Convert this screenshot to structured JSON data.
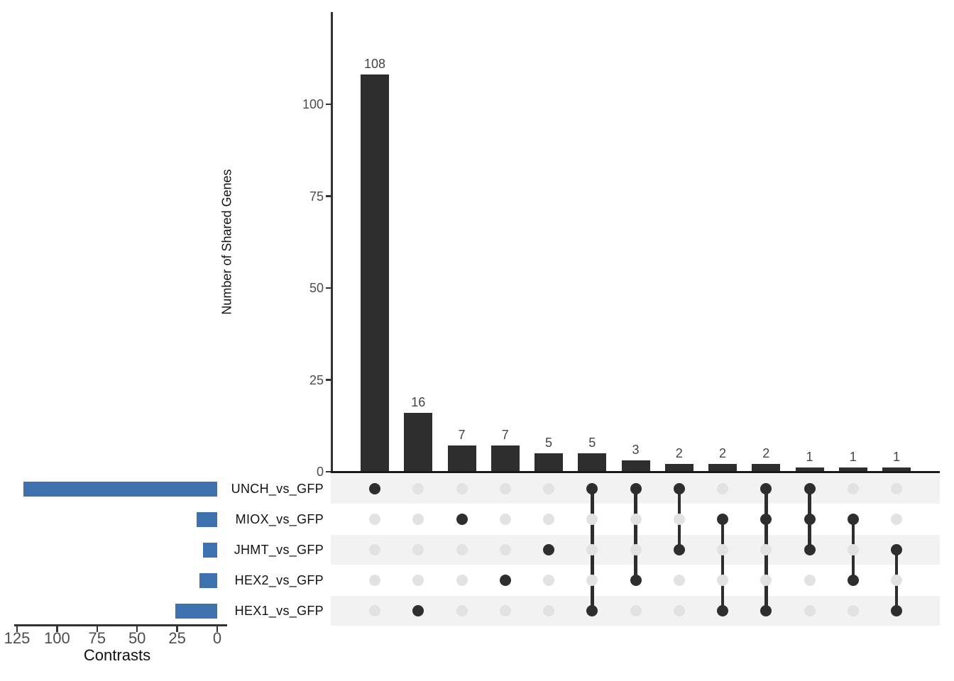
{
  "chart_data": {
    "type": "upset",
    "ylabel": "Number of Shared Genes",
    "set_size_label": "Contrasts",
    "grid": false,
    "sets": [
      {
        "name": "UNCH_vs_GFP",
        "size": 121
      },
      {
        "name": "MIOX_vs_GFP",
        "size": 13
      },
      {
        "name": "JHMT_vs_GFP",
        "size": 9
      },
      {
        "name": "HEX2_vs_GFP",
        "size": 11
      },
      {
        "name": "HEX1_vs_GFP",
        "size": 26
      }
    ],
    "intersections": [
      {
        "sets": [
          "UNCH_vs_GFP"
        ],
        "value": 108
      },
      {
        "sets": [
          "HEX1_vs_GFP"
        ],
        "value": 16
      },
      {
        "sets": [
          "MIOX_vs_GFP"
        ],
        "value": 7
      },
      {
        "sets": [
          "HEX2_vs_GFP"
        ],
        "value": 7
      },
      {
        "sets": [
          "JHMT_vs_GFP"
        ],
        "value": 5
      },
      {
        "sets": [
          "UNCH_vs_GFP",
          "HEX1_vs_GFP"
        ],
        "value": 5
      },
      {
        "sets": [
          "UNCH_vs_GFP",
          "HEX2_vs_GFP"
        ],
        "value": 3
      },
      {
        "sets": [
          "UNCH_vs_GFP",
          "JHMT_vs_GFP"
        ],
        "value": 2
      },
      {
        "sets": [
          "MIOX_vs_GFP",
          "HEX1_vs_GFP"
        ],
        "value": 2
      },
      {
        "sets": [
          "UNCH_vs_GFP",
          "MIOX_vs_GFP",
          "HEX1_vs_GFP"
        ],
        "value": 2
      },
      {
        "sets": [
          "UNCH_vs_GFP",
          "MIOX_vs_GFP",
          "JHMT_vs_GFP"
        ],
        "value": 1
      },
      {
        "sets": [
          "MIOX_vs_GFP",
          "HEX2_vs_GFP"
        ],
        "value": 1
      },
      {
        "sets": [
          "JHMT_vs_GFP",
          "HEX1_vs_GFP"
        ],
        "value": 1
      }
    ],
    "y_ticks": [
      0,
      25,
      50,
      75,
      100
    ],
    "ylim": [
      0,
      125
    ],
    "set_size_ticks": [
      125,
      100,
      75,
      50,
      25,
      0
    ],
    "set_size_xlim": [
      125,
      0
    ],
    "legend_position": "none",
    "colors": {
      "intersection_bar": "#2e2e2e",
      "set_bar": "#3d72ae",
      "active_dot": "#2e2e2e",
      "connector": "#2e2e2e",
      "inactive_dot": "#e2e2e2",
      "row_stripe": "#f2f2f2",
      "axis_line": "#333333",
      "baseline": "#1a1a1a",
      "tick_text": "#4d4d4d",
      "value_text": "#444444",
      "label_text": "#111111"
    }
  }
}
